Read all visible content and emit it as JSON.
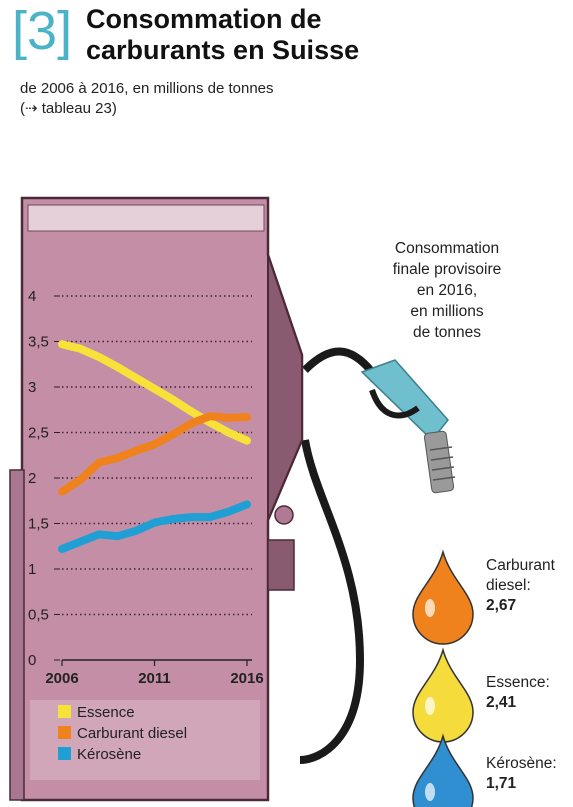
{
  "header": {
    "number": "3",
    "title_line1": "Consommation de",
    "title_line2": "carburants en Suisse",
    "subtitle": "de 2006 à 2016, en millions de tonnes",
    "reference": "tableau 23"
  },
  "note": {
    "line1": "Consommation",
    "line2": "finale provisoire",
    "line3": "en 2016,",
    "line4": "en millions",
    "line5": "de tonnes"
  },
  "drops": [
    {
      "name_line1": "Carburant",
      "name_line2": "diesel:",
      "value": "2,67",
      "color": "#f0821e"
    },
    {
      "name_line1": "Essence:",
      "name_line2": "",
      "value": "2,41",
      "color": "#f5dc3c"
    },
    {
      "name_line1": "Kérosène:",
      "name_line2": "",
      "value": "1,71",
      "color": "#2f8fd0"
    }
  ],
  "chart_data": {
    "type": "line",
    "x": [
      2006,
      2007,
      2008,
      2009,
      2010,
      2011,
      2012,
      2013,
      2014,
      2015,
      2016
    ],
    "x_tick_labels": [
      "2006",
      "2011",
      "2016"
    ],
    "y_tick_labels": [
      "0",
      "0,5",
      "1",
      "1,5",
      "2",
      "2,5",
      "3",
      "3,5",
      "4"
    ],
    "ylim": [
      0,
      4
    ],
    "grid": true,
    "legend_position": "bottom",
    "series": [
      {
        "name": "Essence",
        "color": "#f7e23a",
        "values": [
          3.47,
          3.42,
          3.33,
          3.22,
          3.1,
          2.98,
          2.86,
          2.73,
          2.61,
          2.5,
          2.41
        ]
      },
      {
        "name": "Carburant diesel",
        "color": "#f0821e",
        "values": [
          1.85,
          1.98,
          2.17,
          2.22,
          2.3,
          2.37,
          2.48,
          2.6,
          2.68,
          2.66,
          2.67
        ]
      },
      {
        "name": "Kérosène",
        "color": "#1f9fd3",
        "values": [
          1.22,
          1.3,
          1.38,
          1.36,
          1.42,
          1.51,
          1.55,
          1.57,
          1.57,
          1.63,
          1.71
        ]
      }
    ]
  }
}
